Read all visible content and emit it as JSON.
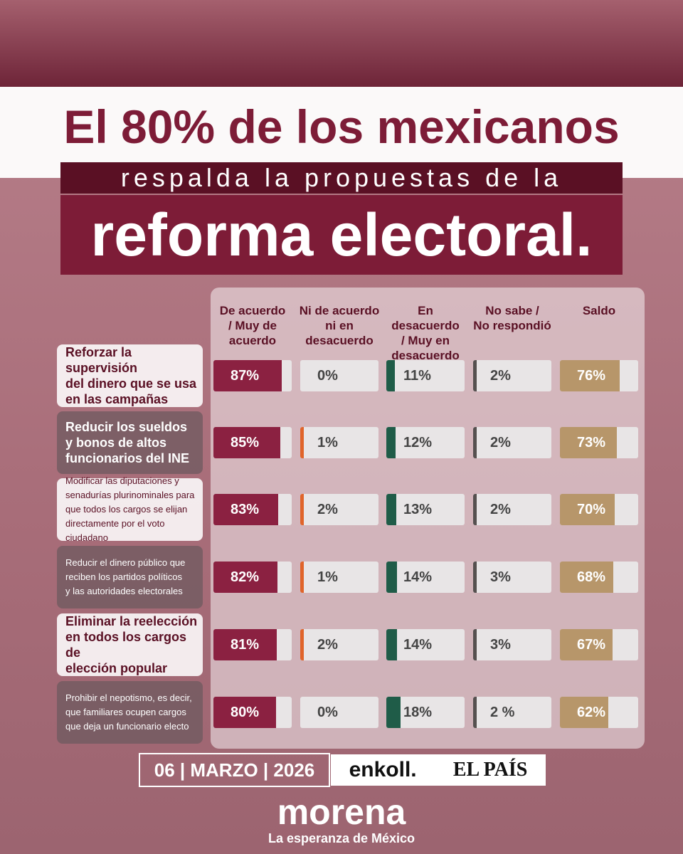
{
  "title": {
    "line1": "El 80% de los mexicanos",
    "line2": "respalda la propuestas de la",
    "line3": "reforma electoral."
  },
  "table": {
    "columns": [
      [
        "De acuerdo",
        "/ Muy de",
        "acuerdo"
      ],
      [
        "Ni de acuerdo",
        "ni en",
        "desacuerdo"
      ],
      [
        "En desacuerdo",
        "/ Muy en",
        "desacuerdo"
      ],
      [
        "No sabe /",
        "No respondió"
      ],
      [
        "Saldo"
      ]
    ],
    "colors": [
      "#8b2141",
      "#e0642a",
      "#1f5c48",
      "#55504f",
      "#b7966a"
    ],
    "rows": [
      {
        "label": [
          "Reforzar la supervisión",
          "del dinero que se usa",
          "en las campañas"
        ],
        "cells": [
          {
            "value": 87,
            "label": "87%"
          },
          {
            "value": 0,
            "label": "0%"
          },
          {
            "value": 11,
            "label": "11%"
          },
          {
            "value": 2,
            "label": "2%"
          },
          {
            "value": 76,
            "label": "76%"
          }
        ]
      },
      {
        "label": [
          "Reducir los sueldos",
          "y bonos de altos",
          "funcionarios del INE"
        ],
        "cells": [
          {
            "value": 85,
            "label": "85%"
          },
          {
            "value": 1,
            "label": "1%"
          },
          {
            "value": 12,
            "label": "12%"
          },
          {
            "value": 2,
            "label": "2%"
          },
          {
            "value": 73,
            "label": "73%"
          }
        ]
      },
      {
        "label": [
          "Modificar las diputaciones y",
          "senadurías plurinominales para",
          "que todos los cargos se elijan",
          "directamente por el voto ciudadano"
        ],
        "cells": [
          {
            "value": 83,
            "label": "83%"
          },
          {
            "value": 2,
            "label": "2%"
          },
          {
            "value": 13,
            "label": "13%"
          },
          {
            "value": 2,
            "label": "2%"
          },
          {
            "value": 70,
            "label": "70%"
          }
        ]
      },
      {
        "label": [
          "Reducir el dinero público que",
          "reciben los partidos políticos",
          "y las autoridades electorales"
        ],
        "cells": [
          {
            "value": 82,
            "label": "82%"
          },
          {
            "value": 1,
            "label": "1%"
          },
          {
            "value": 14,
            "label": "14%"
          },
          {
            "value": 3,
            "label": "3%"
          },
          {
            "value": 68,
            "label": "68%"
          }
        ]
      },
      {
        "label": [
          "Eliminar la reelección",
          "en todos los cargos de",
          "elección popular"
        ],
        "cells": [
          {
            "value": 81,
            "label": "81%"
          },
          {
            "value": 2,
            "label": "2%"
          },
          {
            "value": 14,
            "label": "14%"
          },
          {
            "value": 3,
            "label": "3%"
          },
          {
            "value": 67,
            "label": "67%"
          }
        ]
      },
      {
        "label": [
          "Prohibir el nepotismo, es decir,",
          "que familiares ocupen cargos",
          "que deja un funcionario electo"
        ],
        "cells": [
          {
            "value": 80,
            "label": "80%"
          },
          {
            "value": 0,
            "label": "0%"
          },
          {
            "value": 18,
            "label": "18%"
          },
          {
            "value": 2,
            "label": "2 %"
          },
          {
            "value": 62,
            "label": "62%"
          }
        ]
      }
    ]
  },
  "footer": {
    "date": "06 | MARZO | 2026",
    "pollster": "enkoll.",
    "outlet": "EL PAÍS",
    "brand": "morena",
    "tagline": "La esperanza de México"
  }
}
